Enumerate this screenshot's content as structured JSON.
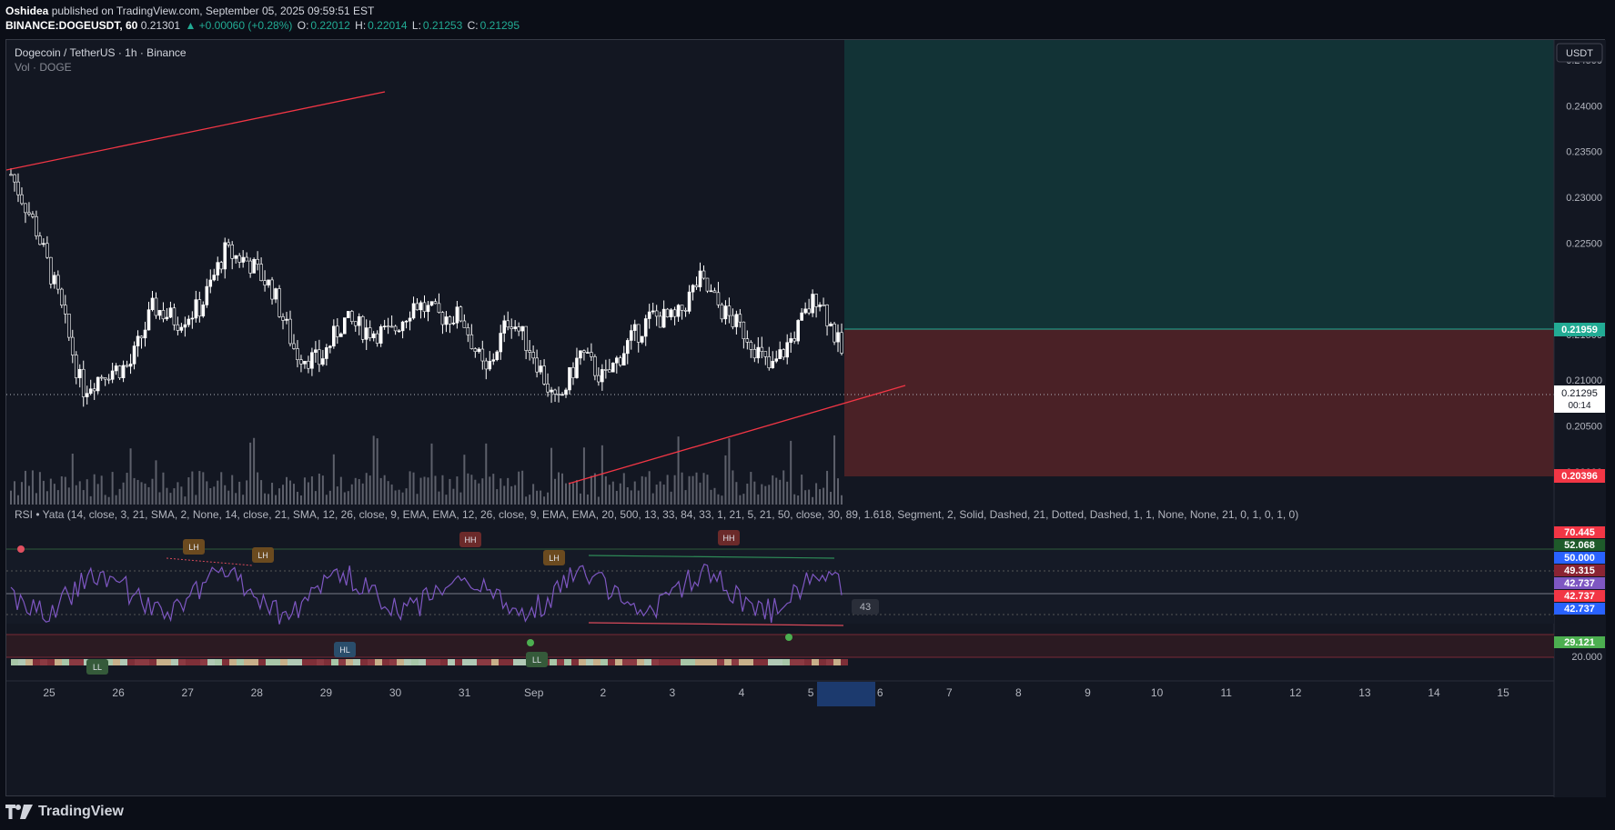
{
  "header": {
    "author": "Oshidea",
    "published": "published on TradingView.com, September 05, 2025 09:59:51 EST",
    "symbol": "BINANCE:DOGEUSDT, 60",
    "price": "0.21301",
    "change": "▲ +0.00060 (+0.28%)",
    "o_label": "O:",
    "o": "0.22012",
    "h_label": "H:",
    "h": "0.22014",
    "l_label": "L:",
    "l": "0.21253",
    "c_label": "C:",
    "c": "0.21295"
  },
  "legend": {
    "title": "Dogecoin / TetherUS · 1h · Binance",
    "vol": "Vol · DOGE",
    "rsi": "RSI • Yata (14, close, 3, 21, SMA, 2, None, 14, close, 21, SMA, 12, 26, close, 9, EMA, EMA, 12, 26, close, 9, EMA, EMA, 20, 500, 13, 33, 84, 33, 1, 21, 5, 21, 50, close, 30, 89, 1.618, Segment, 2, Solid, Dashed, 21, Dotted, Dashed, 1, 1, None, None, 21, 0, 1, 0, 1, 0)"
  },
  "currency_button": "USDT",
  "price_axis": [
    "0.24500",
    "0.24000",
    "0.23500",
    "0.23000",
    "0.22500",
    "0.21500",
    "0.21000",
    "0.20500",
    "0.20000"
  ],
  "price_badges": {
    "target": "0.21959",
    "last": "0.21295",
    "countdown": "00:14",
    "stop": "0.20396"
  },
  "rsi_axis": {
    "badges": [
      "70.445",
      "52.068",
      "50.000",
      "49.315",
      "42.737",
      "42.737",
      "42.737",
      "29.121"
    ],
    "tick_20": "20.000",
    "value_box": "43"
  },
  "rsi_labels": [
    "LH",
    "LH",
    "HH",
    "LH",
    "HH",
    "HL",
    "LL",
    "LL"
  ],
  "time_axis": [
    "25",
    "26",
    "27",
    "28",
    "29",
    "30",
    "31",
    "Sep",
    "2",
    "3",
    "4",
    "5",
    "6",
    "7",
    "8",
    "9",
    "10",
    "11",
    "12",
    "13",
    "14",
    "15"
  ],
  "footer": {
    "brand": "TradingView"
  },
  "colors": {
    "background": "#131722",
    "profit_zone": "#123336",
    "loss_zone": "#4a2126",
    "candle": "#ffffff",
    "trendline": "#f23645",
    "rsi_line": "#7e57c2",
    "up": "#22ab94",
    "down": "#f23645"
  },
  "chart_data": {
    "type": "candlestick",
    "title": "Dogecoin / TetherUS · 1h · Binance",
    "symbol": "DOGEUSDT",
    "interval": "1h",
    "ylim": [
      0.1965,
      0.2472
    ],
    "last_price": 0.21295,
    "position": {
      "entry": 0.21959,
      "target": 0.2472,
      "stop": 0.20396
    },
    "close_path": [
      {
        "x": "25",
        "y": 0.2325
      },
      {
        "x": "25",
        "y": 0.227
      },
      {
        "x": "25",
        "y": 0.219
      },
      {
        "x": "26",
        "y": 0.209
      },
      {
        "x": "26",
        "y": 0.211
      },
      {
        "x": "26",
        "y": 0.2115
      },
      {
        "x": "27",
        "y": 0.218
      },
      {
        "x": "27",
        "y": 0.2165
      },
      {
        "x": "27",
        "y": 0.218
      },
      {
        "x": "28",
        "y": 0.224
      },
      {
        "x": "28",
        "y": 0.223
      },
      {
        "x": "28",
        "y": 0.22
      },
      {
        "x": "29",
        "y": 0.213
      },
      {
        "x": "29",
        "y": 0.212
      },
      {
        "x": "29",
        "y": 0.2165
      },
      {
        "x": "30",
        "y": 0.2155
      },
      {
        "x": "30",
        "y": 0.215
      },
      {
        "x": "31",
        "y": 0.2185
      },
      {
        "x": "31",
        "y": 0.217
      },
      {
        "x": "31",
        "y": 0.217
      },
      {
        "x": "Sep",
        "y": 0.2105
      },
      {
        "x": "Sep",
        "y": 0.217
      },
      {
        "x": "Sep",
        "y": 0.213
      },
      {
        "x": "2",
        "y": 0.207
      },
      {
        "x": "2",
        "y": 0.213
      },
      {
        "x": "2",
        "y": 0.21
      },
      {
        "x": "3",
        "y": 0.214
      },
      {
        "x": "3",
        "y": 0.217
      },
      {
        "x": "3",
        "y": 0.2165
      },
      {
        "x": "4",
        "y": 0.221
      },
      {
        "x": "4",
        "y": 0.2175
      },
      {
        "x": "4",
        "y": 0.215
      },
      {
        "x": "5",
        "y": 0.211
      },
      {
        "x": "5",
        "y": 0.215
      },
      {
        "x": "5",
        "y": 0.2195
      },
      {
        "x": "5",
        "y": 0.213
      }
    ],
    "rsi_levels": [
      70.445,
      52.068,
      50.0,
      49.315,
      42.737,
      29.121
    ]
  }
}
